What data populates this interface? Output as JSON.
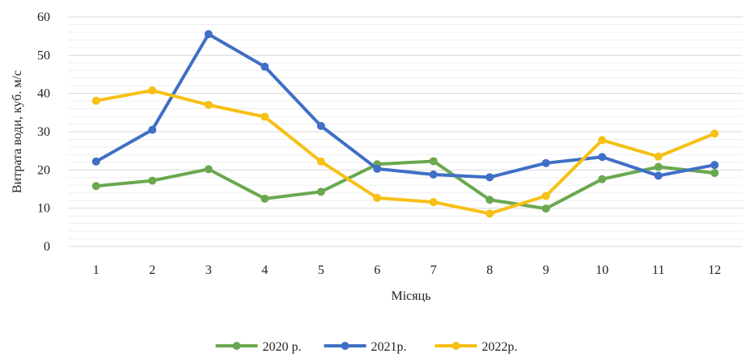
{
  "chart_data": {
    "type": "line",
    "xlabel": "Місяць",
    "ylabel": "Витрата води, куб. м/с",
    "ylim": [
      0,
      60
    ],
    "yticks": [
      0,
      10,
      20,
      30,
      40,
      50,
      60
    ],
    "categories": [
      "1",
      "2",
      "3",
      "4",
      "5",
      "6",
      "7",
      "8",
      "9",
      "10",
      "11",
      "12"
    ],
    "grid": true,
    "legend_position": "bottom",
    "series": [
      {
        "name": "2020 р.",
        "color": "#6aa84f",
        "values": [
          15.8,
          17.2,
          20.2,
          12.5,
          14.3,
          21.5,
          22.3,
          12.2,
          9.9,
          17.6,
          20.8,
          19.2
        ]
      },
      {
        "name": "2021р.",
        "color": "#3f6fc6",
        "values": [
          22.2,
          30.5,
          55.5,
          47.0,
          31.5,
          20.3,
          18.8,
          18.1,
          21.8,
          23.4,
          18.5,
          21.3
        ]
      },
      {
        "name": "2022р.",
        "color": "#f6c015",
        "values": [
          38.1,
          40.8,
          37.0,
          33.9,
          22.2,
          12.7,
          11.6,
          8.6,
          13.2,
          27.8,
          23.5,
          29.5
        ]
      }
    ]
  }
}
